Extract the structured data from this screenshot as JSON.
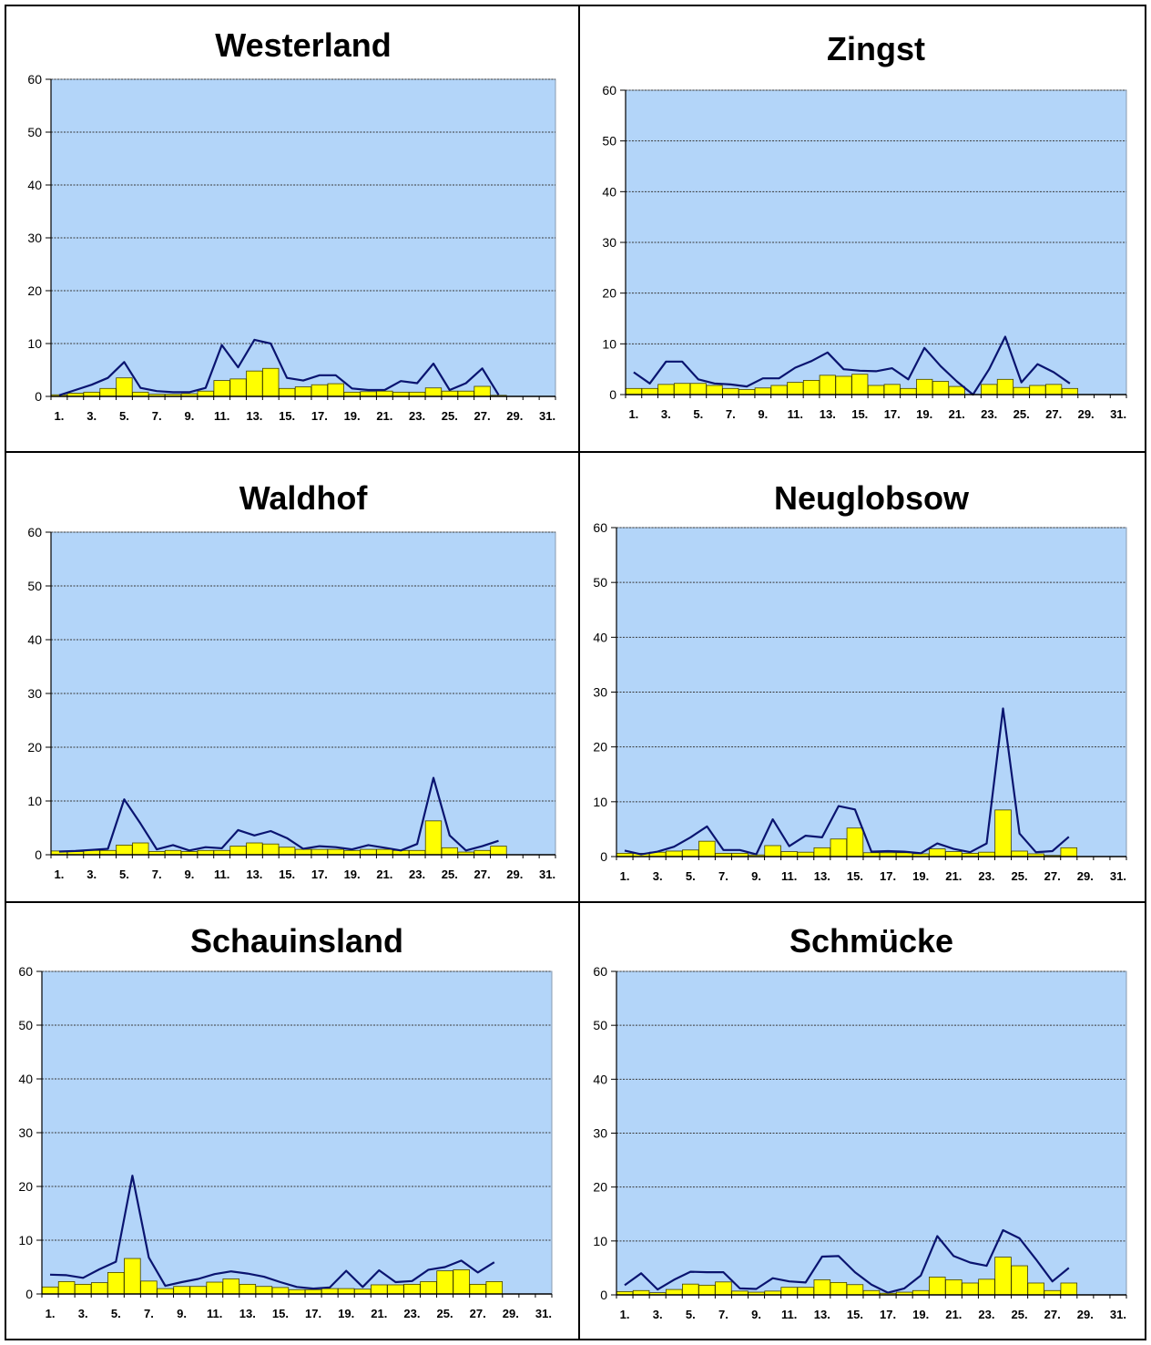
{
  "colors": {
    "plot_bg": "#b3d5f9",
    "bar_fill": "#ffff00",
    "bar_stroke": "#404000",
    "line": "#0a1470",
    "grid": "#3a3a3a",
    "axis": "#000000"
  },
  "chart_data": [
    {
      "type": "bar",
      "title": "Westerland",
      "ylim": [
        0,
        60
      ],
      "yticks": [
        "0",
        "10",
        "20",
        "30",
        "40",
        "50",
        "60"
      ],
      "xticks": [
        "1.",
        "3.",
        "5.",
        "7.",
        "9.",
        "11.",
        "13.",
        "15.",
        "17.",
        "19.",
        "21.",
        "23.",
        "25.",
        "27.",
        "29.",
        "31."
      ],
      "grid": true,
      "days": 31,
      "bars": [
        0.3,
        0.6,
        0.8,
        1.5,
        3.5,
        0.8,
        0.4,
        0.4,
        0.5,
        1,
        3,
        3.3,
        4.8,
        5.3,
        1.5,
        1.8,
        2.2,
        2.4,
        0.8,
        0.9,
        1,
        0.8,
        0.8,
        1.6,
        1,
        1,
        1.9,
        0.2
      ],
      "line": [
        0.2,
        1.2,
        2.2,
        3.5,
        6.5,
        1.6,
        1,
        0.8,
        0.8,
        1.6,
        9.7,
        5.5,
        10.7,
        10,
        3.5,
        3,
        4,
        4,
        1.5,
        1.2,
        1.2,
        2.9,
        2.5,
        6.2,
        1.2,
        2.5,
        5.3,
        0.3
      ]
    },
    {
      "type": "bar",
      "title": "Zingst",
      "ylim": [
        0,
        60
      ],
      "yticks": [
        "0",
        "10",
        "20",
        "30",
        "40",
        "50",
        "60"
      ],
      "xticks": [
        "1.",
        "3.",
        "5.",
        "7.",
        "9.",
        "11.",
        "13.",
        "15.",
        "17.",
        "19.",
        "21.",
        "23.",
        "25.",
        "27.",
        "29.",
        "31."
      ],
      "grid": true,
      "days": 31,
      "bars": [
        1.2,
        1.2,
        2,
        2.2,
        2.2,
        1.8,
        1.2,
        1,
        1.3,
        1.8,
        2.4,
        2.8,
        3.8,
        3.6,
        4,
        1.8,
        2,
        1.2,
        3,
        2.6,
        1.6,
        0,
        2,
        3,
        1.4,
        1.8,
        2,
        1.2
      ],
      "line": [
        4.4,
        2.2,
        6.5,
        6.5,
        3,
        2.2,
        2,
        1.6,
        3.2,
        3.2,
        5.3,
        6.6,
        8.3,
        5,
        4.7,
        4.6,
        5.2,
        3,
        9.2,
        5.6,
        2.6,
        0,
        5,
        11.4,
        2.4,
        6,
        4.4,
        2.2
      ]
    },
    {
      "type": "bar",
      "title": "Waldhof",
      "ylim": [
        0,
        60
      ],
      "yticks": [
        "0",
        "10",
        "20",
        "30",
        "40",
        "50",
        "60"
      ],
      "xticks": [
        "1.",
        "3.",
        "5.",
        "7.",
        "9.",
        "11.",
        "13.",
        "15.",
        "17.",
        "19.",
        "21.",
        "23.",
        "25.",
        "27.",
        "29.",
        "31."
      ],
      "grid": true,
      "days": 31,
      "bars": [
        0.7,
        0.6,
        0.8,
        0.8,
        1.8,
        2.2,
        0.6,
        0.8,
        0.6,
        0.8,
        0.8,
        1.6,
        2.2,
        2,
        1.4,
        1,
        1,
        1,
        0.8,
        1,
        1,
        0.8,
        0.8,
        6.3,
        1.3,
        0.5,
        0.8,
        1.6
      ],
      "line": [
        0.6,
        0.7,
        0.9,
        1.1,
        10.3,
        5.8,
        1,
        1.8,
        0.8,
        1.4,
        1.2,
        4.6,
        3.6,
        4.4,
        3.1,
        1.1,
        1.6,
        1.4,
        1,
        1.8,
        1.3,
        0.8,
        2,
        14.3,
        3.6,
        0.8,
        1.6,
        2.6
      ]
    },
    {
      "type": "bar",
      "title": "Neuglobsow",
      "ylim": [
        0,
        60
      ],
      "yticks": [
        "0",
        "10",
        "20",
        "30",
        "40",
        "50",
        "60"
      ],
      "xticks": [
        "1.",
        "3.",
        "5.",
        "7.",
        "9.",
        "11.",
        "13.",
        "15.",
        "17.",
        "19.",
        "21.",
        "23.",
        "25.",
        "27.",
        "29.",
        "31."
      ],
      "grid": true,
      "days": 31,
      "bars": [
        0.6,
        0.6,
        0.8,
        1,
        1.2,
        2.8,
        0.6,
        0.6,
        0.3,
        2,
        0.9,
        0.8,
        1.6,
        3.2,
        5.2,
        0.7,
        0.7,
        0.7,
        0.5,
        1.4,
        0.9,
        0.6,
        0.8,
        8.5,
        1,
        0.5,
        0.2,
        1.6
      ],
      "line": [
        1.1,
        0.4,
        0.9,
        1.8,
        3.5,
        5.5,
        1.2,
        1.2,
        0.4,
        6.8,
        1.9,
        3.8,
        3.5,
        9.2,
        8.6,
        0.9,
        1,
        0.9,
        0.6,
        2.4,
        1.4,
        0.8,
        2.4,
        27,
        4.2,
        0.8,
        1,
        3.6
      ]
    },
    {
      "type": "bar",
      "title": "Schauinsland",
      "ylim": [
        0,
        60
      ],
      "yticks": [
        "0",
        "10",
        "20",
        "30",
        "40",
        "50",
        "60"
      ],
      "xticks": [
        "1.",
        "3.",
        "5.",
        "7.",
        "9.",
        "11.",
        "13.",
        "15.",
        "17.",
        "19.",
        "21.",
        "23.",
        "25.",
        "27.",
        "29.",
        "31."
      ],
      "grid": true,
      "days": 31,
      "bars": [
        1.3,
        2.3,
        1.8,
        2.1,
        4,
        6.6,
        2.4,
        1,
        1.4,
        1.4,
        2.2,
        2.8,
        1.8,
        1.4,
        1.2,
        0.8,
        0.8,
        1,
        1,
        0.9,
        1.7,
        1.7,
        1.8,
        2.3,
        4.3,
        4.5,
        1.8,
        2.3
      ],
      "line": [
        3.6,
        3.5,
        3,
        4.6,
        6,
        22,
        6.8,
        1.5,
        2.2,
        2.8,
        3.7,
        4.2,
        3.8,
        3.2,
        2.2,
        1.3,
        1,
        1.2,
        4.3,
        1.3,
        4.4,
        2.2,
        2.4,
        4.5,
        5,
        6.2,
        4,
        5.9
      ]
    },
    {
      "type": "bar",
      "title": "Schmücke",
      "ylim": [
        0,
        60
      ],
      "yticks": [
        "0",
        "10",
        "20",
        "30",
        "40",
        "50",
        "60"
      ],
      "xticks": [
        "1.",
        "3.",
        "5.",
        "7.",
        "9.",
        "11.",
        "13.",
        "15.",
        "17.",
        "19.",
        "21.",
        "23.",
        "25.",
        "27.",
        "29.",
        "31."
      ],
      "grid": true,
      "days": 31,
      "bars": [
        0.6,
        0.8,
        0.4,
        1,
        2,
        1.8,
        2.4,
        0.7,
        0.5,
        0.7,
        1.4,
        1.4,
        2.8,
        2.3,
        1.9,
        0.8,
        0.3,
        0.5,
        0.8,
        3.3,
        2.8,
        2.2,
        2.9,
        7,
        5.4,
        2.2,
        0.8,
        2.2
      ],
      "line": [
        1.8,
        4,
        1,
        2.8,
        4.3,
        4.2,
        4.2,
        1.2,
        1.1,
        3.1,
        2.5,
        2.3,
        7.1,
        7.2,
        4.2,
        1.9,
        0.4,
        1.2,
        3.6,
        10.9,
        7.2,
        6,
        5.4,
        12,
        10.5,
        6.6,
        2.5,
        5
      ]
    }
  ]
}
